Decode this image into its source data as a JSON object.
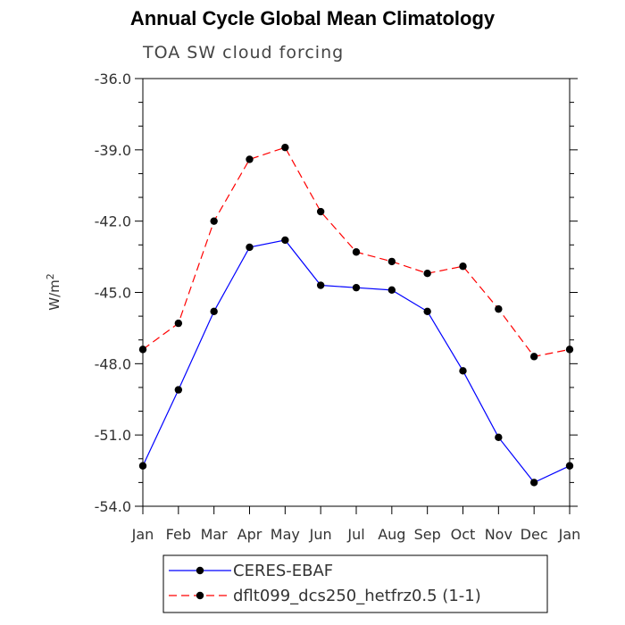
{
  "chart_data": {
    "type": "line",
    "title": "Annual Cycle Global Mean Climatology",
    "subtitle": "TOA SW cloud forcing",
    "xlabel": "",
    "ylabel": "W/m",
    "ylabel_superscript": "2",
    "categories": [
      "Jan",
      "Feb",
      "Mar",
      "Apr",
      "May",
      "Jun",
      "Jul",
      "Aug",
      "Sep",
      "Oct",
      "Nov",
      "Dec",
      "Jan"
    ],
    "ylim": [
      -54.0,
      -36.0
    ],
    "yticks": [
      -54.0,
      -51.0,
      -48.0,
      -45.0,
      -42.0,
      -39.0,
      -36.0
    ],
    "ytick_labels": [
      "-54.0",
      "-51.0",
      "-48.0",
      "-45.0",
      "-42.0",
      "-39.0",
      "-36.0"
    ],
    "series": [
      {
        "name": "CERES-EBAF",
        "color": "#0000ff",
        "dash": "solid",
        "values": [
          -52.3,
          -49.1,
          -45.8,
          -43.1,
          -42.8,
          -44.7,
          -44.8,
          -44.9,
          -45.8,
          -48.3,
          -51.1,
          -53.0,
          -52.3
        ]
      },
      {
        "name": "dflt099_dcs250_hetfrz0.5 (1-1)",
        "color": "#ff0000",
        "dash": "dashed",
        "values": [
          -47.4,
          -46.3,
          -42.0,
          -39.4,
          -38.9,
          -41.6,
          -43.3,
          -43.7,
          -44.2,
          -43.9,
          -45.7,
          -47.7,
          -47.4
        ]
      }
    ],
    "legend_position": "bottom"
  }
}
